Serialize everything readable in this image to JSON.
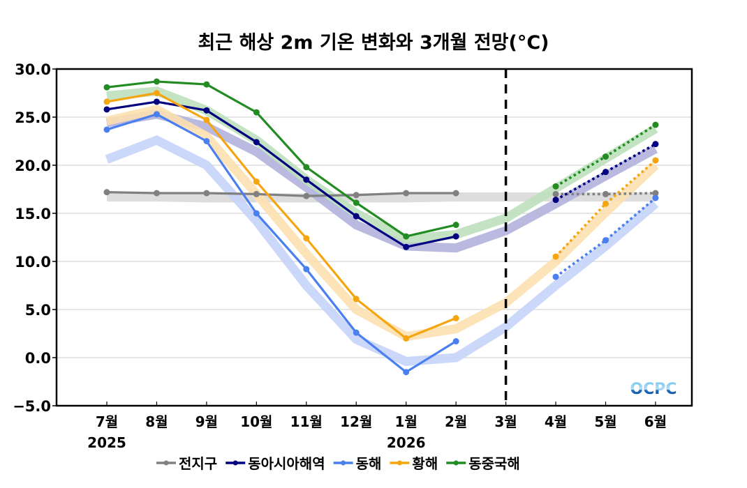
{
  "chart_data": {
    "type": "line",
    "title": "최근 해상 2m 기온 변화와 3개월 전망(°C)",
    "xlabel": "",
    "ylabel": "",
    "ylim": [
      -5.0,
      30.0
    ],
    "yticks": [
      "30.0",
      "25.0",
      "20.0",
      "15.0",
      "10.0",
      "5.0",
      "0.0",
      "−5.0"
    ],
    "ytick_values": [
      30,
      25,
      20,
      15,
      10,
      5,
      0,
      -5
    ],
    "categories": [
      "7월",
      "8월",
      "9월",
      "10월",
      "11월",
      "12월",
      "1월",
      "2월",
      "3월",
      "4월",
      "5월",
      "6월"
    ],
    "year_labels": [
      {
        "label": "2025",
        "category": "7월"
      },
      {
        "label": "2026",
        "category": "1월"
      }
    ],
    "forecast_divider_category": "3월",
    "grid": true,
    "legend_position": "bottom",
    "series": [
      {
        "name": "전지구",
        "color": "#808080",
        "band_color": "#d9d9d9",
        "observed": [
          17.2,
          17.1,
          17.1,
          17.0,
          16.8,
          16.9,
          17.1,
          17.1
        ],
        "forecast": {
          "categories": [
            "4월",
            "5월",
            "6월"
          ],
          "values": [
            17.0,
            17.0,
            17.1
          ]
        },
        "climatology": [
          16.7,
          16.7,
          16.6,
          16.6,
          16.6,
          16.6,
          16.6,
          16.7,
          16.7,
          16.7,
          16.7,
          16.7
        ]
      },
      {
        "name": "동아시아해역",
        "color": "#000080",
        "band_color": "#b3b3dd",
        "observed": [
          25.8,
          26.6,
          25.7,
          22.4,
          18.5,
          14.7,
          11.5,
          12.6
        ],
        "forecast": {
          "categories": [
            "4월",
            "5월",
            "6월"
          ],
          "values": [
            16.4,
            19.3,
            22.2
          ]
        },
        "climatology": [
          24.4,
          25.3,
          24.0,
          21.4,
          17.7,
          13.8,
          11.6,
          11.4,
          13.2,
          16.0,
          18.9,
          21.7
        ]
      },
      {
        "name": "동해",
        "color": "#4a7ff0",
        "band_color": "#c6d4f9",
        "observed": [
          23.7,
          25.3,
          22.5,
          15.0,
          9.2,
          2.6,
          -1.5,
          1.7
        ],
        "forecast": {
          "categories": [
            "4월",
            "5월",
            "6월"
          ],
          "values": [
            8.4,
            12.2,
            16.6
          ]
        },
        "climatology": [
          20.6,
          22.6,
          20.0,
          14.2,
          7.5,
          1.9,
          -0.4,
          0.0,
          3.2,
          7.5,
          11.6,
          16.0
        ]
      },
      {
        "name": "황해",
        "color": "#f5a50f",
        "band_color": "#fde0b0",
        "observed": [
          26.6,
          27.5,
          24.7,
          18.3,
          12.4,
          6.1,
          2.0,
          4.1
        ],
        "forecast": {
          "categories": [
            "4월",
            "5월",
            "6월"
          ],
          "values": [
            10.5,
            16.0,
            20.5
          ]
        },
        "climatology": [
          24.6,
          25.8,
          23.0,
          17.0,
          10.8,
          5.0,
          2.2,
          3.0,
          5.7,
          10.0,
          15.1,
          20.0
        ]
      },
      {
        "name": "동중국해",
        "color": "#228b22",
        "band_color": "#bde0bd",
        "observed": [
          28.1,
          28.7,
          28.4,
          25.5,
          19.8,
          16.1,
          12.6,
          13.8
        ],
        "forecast": {
          "categories": [
            "4월",
            "5월",
            "6월"
          ],
          "values": [
            17.8,
            20.9,
            24.2
          ]
        },
        "climatology": [
          27.2,
          27.7,
          25.7,
          22.6,
          18.5,
          15.0,
          12.3,
          12.8,
          14.5,
          17.6,
          20.7,
          23.8
        ]
      }
    ],
    "logo": "OCPC"
  }
}
